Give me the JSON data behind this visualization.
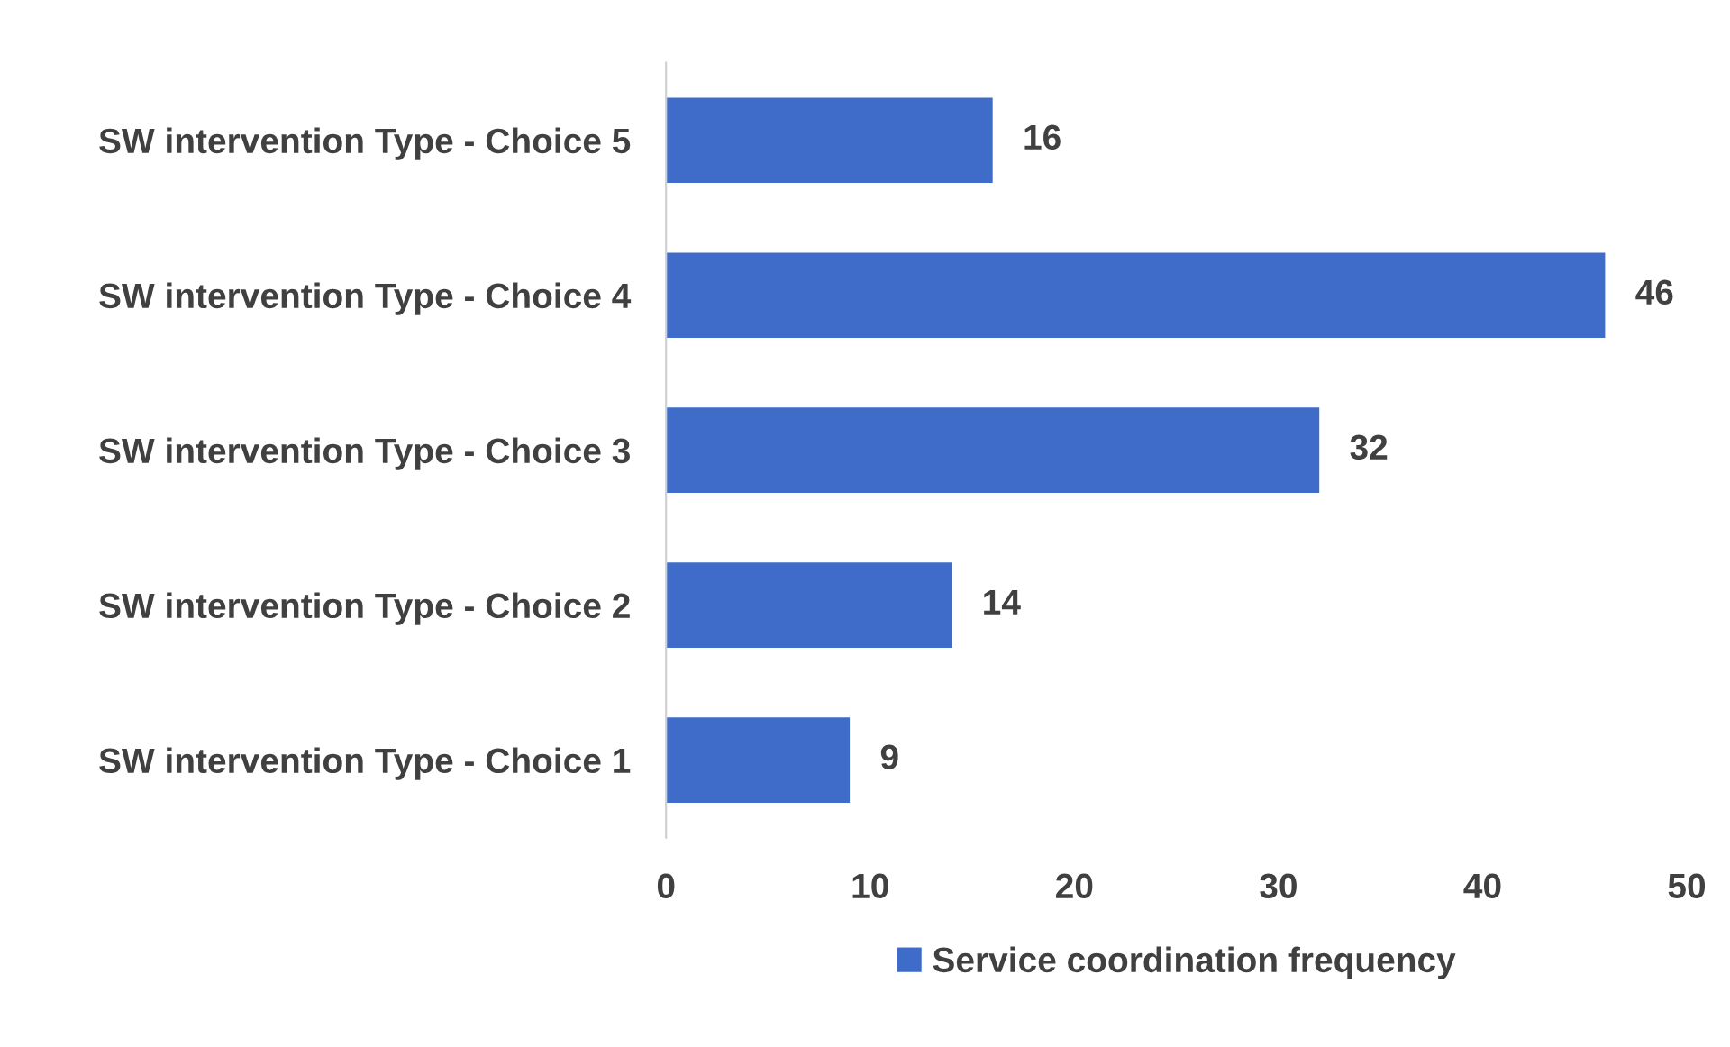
{
  "chart_data": {
    "type": "bar",
    "orientation": "horizontal",
    "categories": [
      "SW intervention Type - Choice 5",
      "SW intervention Type - Choice 4",
      "SW intervention Type - Choice 3",
      "SW intervention Type - Choice 2",
      "SW intervention Type - Choice 1"
    ],
    "series": [
      {
        "name": "Service coordination frequency",
        "color": "#3f6cc8",
        "values": [
          16,
          46,
          32,
          14,
          9
        ]
      }
    ],
    "xlim": [
      0,
      50
    ],
    "xticks": [
      0,
      10,
      20,
      30,
      40,
      50
    ],
    "data_labels": true,
    "grid": false,
    "legend": "bottom"
  }
}
